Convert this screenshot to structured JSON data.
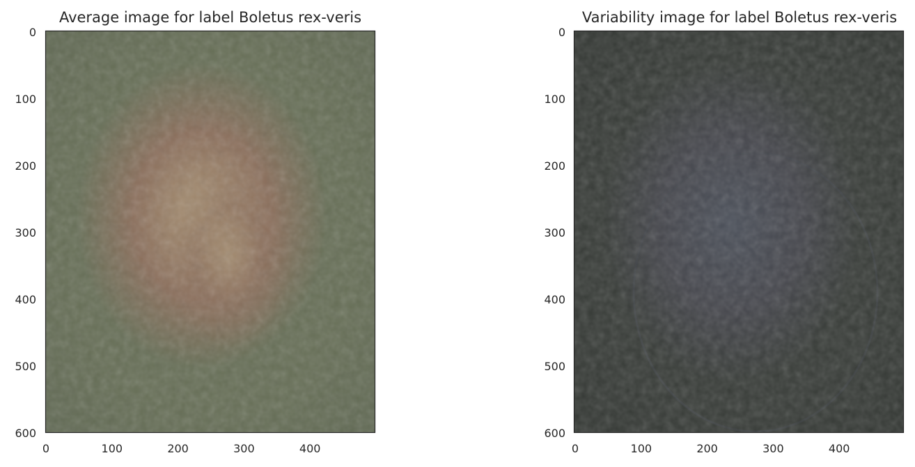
{
  "chart_data": [
    {
      "type": "image",
      "title": "Average image for label Boletus rex-veris",
      "xlim": [
        0,
        500
      ],
      "ylim": [
        0,
        600
      ],
      "y_inverted": true,
      "xticks": [
        0,
        100,
        200,
        300,
        400
      ],
      "yticks": [
        0,
        100,
        200,
        300,
        400,
        500,
        600
      ],
      "colors": {
        "background": "#676f57",
        "center": "#ab9576",
        "shade": "#8b6f5c",
        "edge": "#5a6350"
      }
    },
    {
      "type": "image",
      "title": "Variability image for label Boletus rex-veris",
      "xlim": [
        0,
        500
      ],
      "ylim": [
        0,
        600
      ],
      "y_inverted": true,
      "xticks": [
        0,
        100,
        200,
        300,
        400
      ],
      "yticks": [
        0,
        100,
        200,
        300,
        400,
        500,
        600
      ],
      "colors": {
        "background": "#383c38",
        "center": "#4b505a",
        "shade": "#45464c",
        "edge": "#2e322e"
      }
    }
  ]
}
